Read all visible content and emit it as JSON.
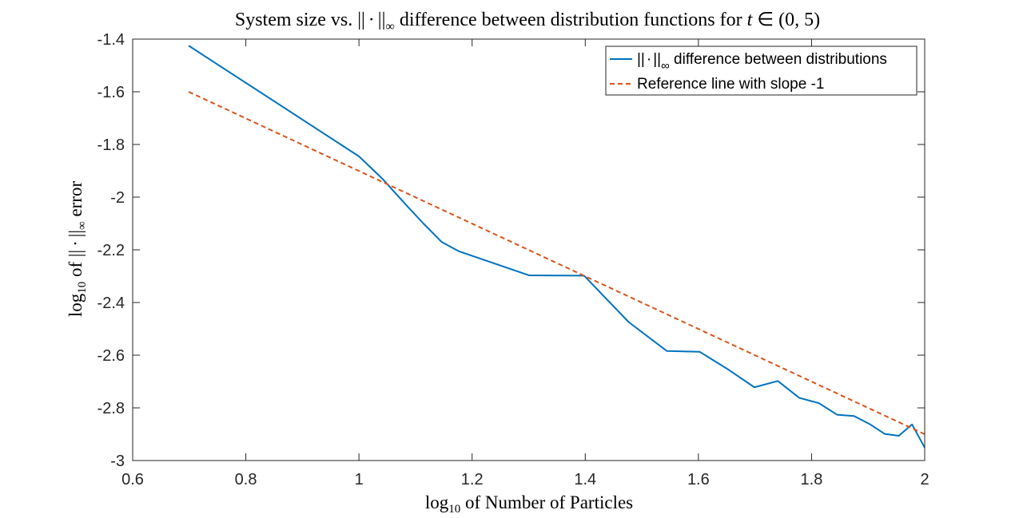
{
  "chart_data": {
    "type": "line",
    "title": "System size vs. ||·||∞ difference between distribution functions for t ∈ (0, 5)",
    "xlabel": "log10 of Number of Particles",
    "ylabel": "log10 of ||·||∞ error",
    "xlim": [
      0.6,
      2.0
    ],
    "ylim": [
      -3.0,
      -1.4
    ],
    "xticks": [
      0.6,
      0.8,
      1.0,
      1.2,
      1.4,
      1.6,
      1.8,
      2.0
    ],
    "yticks": [
      -3.0,
      -2.8,
      -2.6,
      -2.4,
      -2.2,
      -2.0,
      -1.8,
      -1.6,
      -1.4
    ],
    "xtick_labels": [
      "0.6",
      "0.8",
      "1",
      "1.2",
      "1.4",
      "1.6",
      "1.8",
      "2"
    ],
    "ytick_labels": [
      "-3",
      "-2.8",
      "-2.6",
      "-2.4",
      "-2.2",
      "-2",
      "-1.8",
      "-1.6",
      "-1.4"
    ],
    "grid": false,
    "legend_position": "top-right",
    "series": [
      {
        "name": "||·||∞ difference between distributions",
        "color": "#0072BD",
        "style": "solid",
        "x": [
          0.699,
          1.0,
          1.0414,
          1.0792,
          1.1139,
          1.1461,
          1.1761,
          1.301,
          1.3979,
          1.4771,
          1.5441,
          1.6021,
          1.6532,
          1.699,
          1.7404,
          1.7782,
          1.8129,
          1.8451,
          1.8751,
          1.9031,
          1.9294,
          1.9542,
          1.9777,
          2.0
        ],
        "values": [
          -1.425,
          -1.845,
          -1.93,
          -2.02,
          -2.1,
          -2.17,
          -2.205,
          -2.297,
          -2.298,
          -2.475,
          -2.584,
          -2.587,
          -2.655,
          -2.722,
          -2.698,
          -2.762,
          -2.782,
          -2.826,
          -2.831,
          -2.862,
          -2.899,
          -2.906,
          -2.863,
          -2.951
        ]
      },
      {
        "name": "Reference line with slope -1",
        "color": "#D95319",
        "style": "dashed",
        "x": [
          0.699,
          2.0
        ],
        "values": [
          -1.6,
          -2.9
        ]
      }
    ],
    "legend_entries": [
      "||·||∞ difference between distributions",
      "Reference line with slope -1"
    ]
  }
}
